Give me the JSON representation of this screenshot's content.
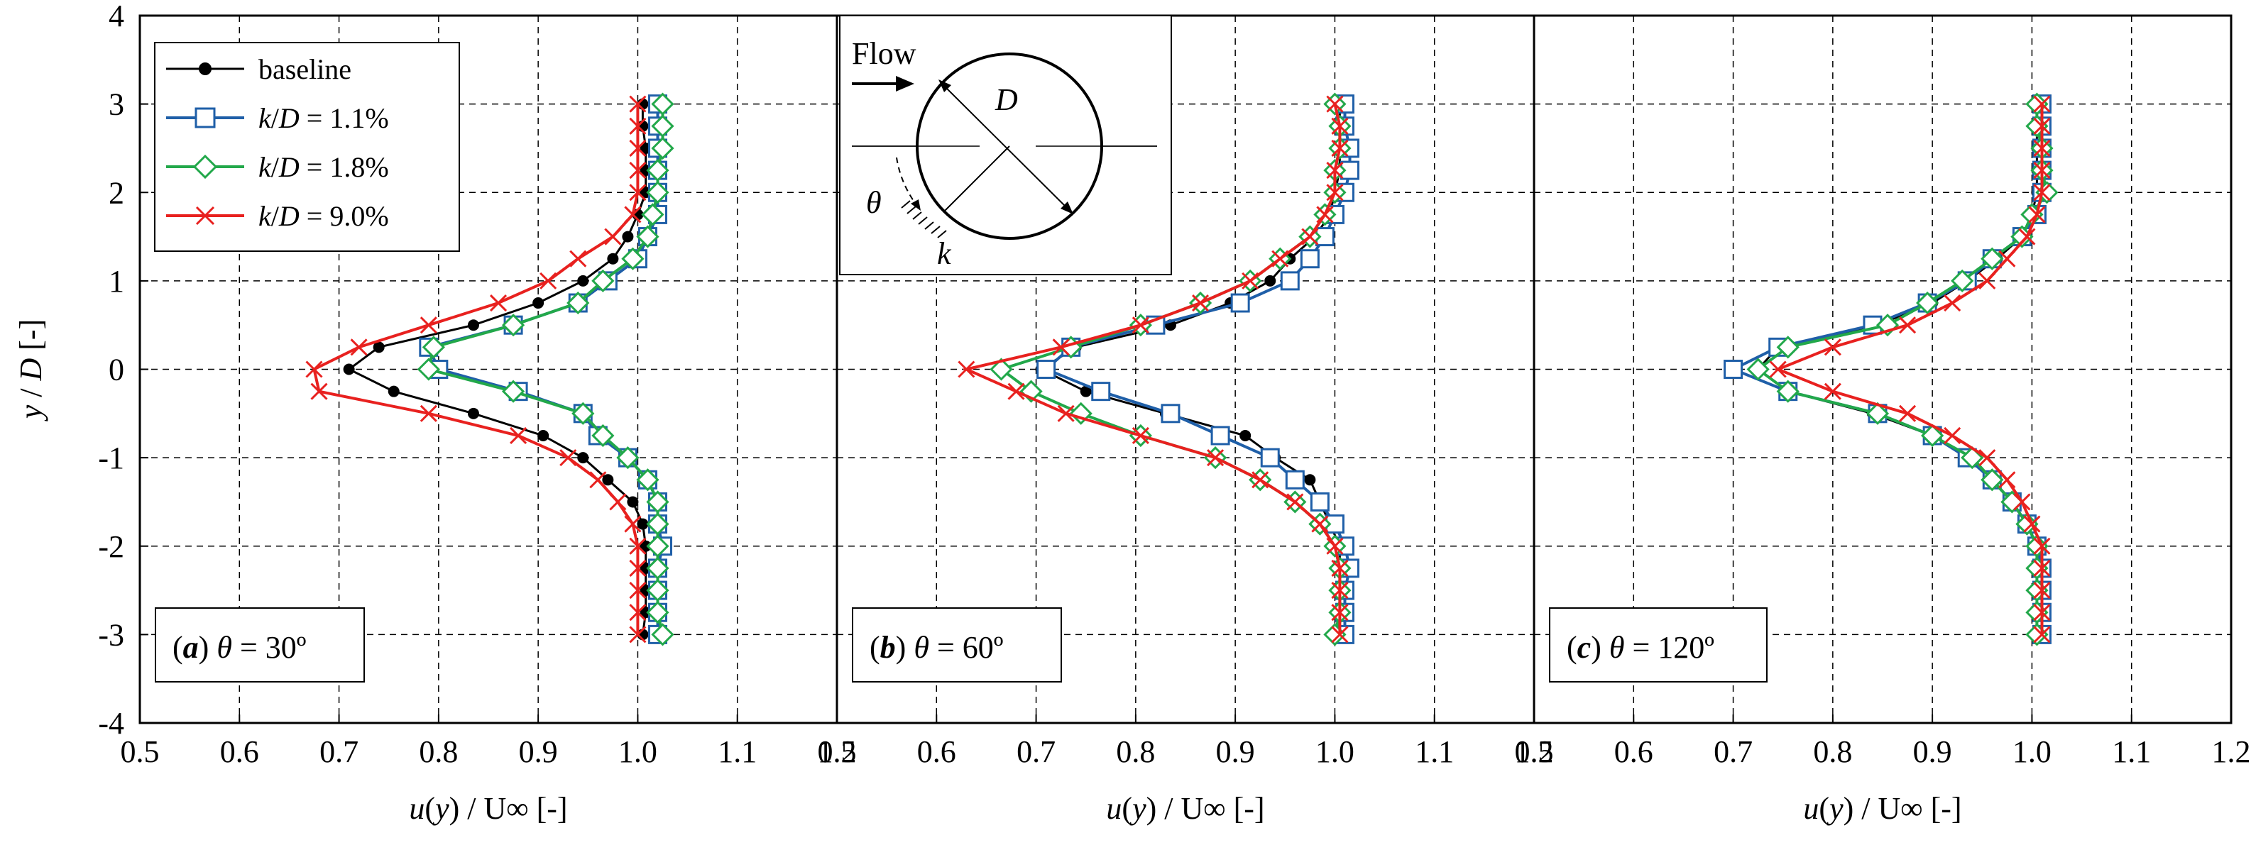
{
  "chart_data": [
    {
      "type": "line",
      "panel_id": "a",
      "annotation": {
        "prefix": "(",
        "letter": "a",
        "suffix": ")",
        "theta": "θ",
        "value": " = 30º"
      },
      "x_tick_labels": [
        "0.5",
        "0.6",
        "0.7",
        "0.8",
        "0.9",
        "1.0",
        "1.1",
        "1.2"
      ],
      "y_tick_labels": [
        "-4",
        "-3",
        "-2",
        "-1",
        "0",
        "1",
        "2",
        "3",
        "4"
      ],
      "xlim": [
        0.5,
        1.2
      ],
      "ylim": [
        -4,
        4
      ],
      "xlabel": {
        "u": "u",
        "mid": "(",
        "y": "y",
        "rest": ") / U∞ [-]"
      },
      "series": [
        {
          "name": "baseline",
          "y": [
            3,
            2.75,
            2.5,
            2.25,
            2,
            1.75,
            1.5,
            1.25,
            1,
            0.75,
            0.5,
            0.25,
            0,
            -0.25,
            -0.5,
            -0.75,
            -1,
            -1.25,
            -1.5,
            -1.75,
            -2,
            -2.25,
            -2.5,
            -2.75,
            -3
          ],
          "values": [
            1.005,
            1.005,
            1.008,
            1.008,
            1.008,
            1.0,
            0.99,
            0.975,
            0.945,
            0.9,
            0.835,
            0.74,
            0.71,
            0.755,
            0.835,
            0.905,
            0.945,
            0.97,
            0.995,
            1.005,
            1.008,
            1.008,
            1.008,
            1.008,
            1.005
          ]
        },
        {
          "name": "k/D = 1.1%",
          "y": [
            3,
            2.75,
            2.5,
            2.25,
            2,
            1.75,
            1.5,
            1.25,
            1,
            0.75,
            0.5,
            0.25,
            0,
            -0.25,
            -0.5,
            -0.75,
            -1,
            -1.25,
            -1.5,
            -1.75,
            -2,
            -2.25,
            -2.5,
            -2.75,
            -3
          ],
          "values": [
            1.02,
            1.02,
            1.02,
            1.02,
            1.02,
            1.02,
            1.01,
            1.0,
            0.97,
            0.94,
            0.875,
            0.79,
            0.8,
            0.88,
            0.945,
            0.96,
            0.99,
            1.01,
            1.02,
            1.02,
            1.025,
            1.02,
            1.02,
            1.02,
            1.02
          ]
        },
        {
          "name": "k/D = 1.8%",
          "y": [
            3,
            2.75,
            2.5,
            2.25,
            2,
            1.75,
            1.5,
            1.25,
            1,
            0.75,
            0.5,
            0.25,
            0,
            -0.25,
            -0.5,
            -0.75,
            -1,
            -1.25,
            -1.5,
            -1.75,
            -2,
            -2.25,
            -2.5,
            -2.75,
            -3
          ],
          "values": [
            1.025,
            1.025,
            1.025,
            1.02,
            1.02,
            1.015,
            1.01,
            0.995,
            0.965,
            0.94,
            0.875,
            0.795,
            0.79,
            0.875,
            0.945,
            0.965,
            0.99,
            1.01,
            1.02,
            1.02,
            1.02,
            1.02,
            1.02,
            1.02,
            1.025
          ]
        },
        {
          "name": "k/D = 9.0%",
          "y": [
            3,
            2.75,
            2.5,
            2.25,
            2,
            1.75,
            1.5,
            1.25,
            1,
            0.75,
            0.5,
            0.25,
            0,
            -0.25,
            -0.5,
            -0.75,
            -1,
            -1.25,
            -1.5,
            -1.75,
            -2,
            -2.25,
            -2.5,
            -2.75,
            -3
          ],
          "values": [
            1.0,
            1.0,
            1.0,
            1.0,
            1.0,
            0.995,
            0.975,
            0.94,
            0.91,
            0.86,
            0.79,
            0.72,
            0.675,
            0.68,
            0.79,
            0.88,
            0.93,
            0.96,
            0.98,
            0.995,
            1.0,
            1.0,
            1.0,
            1.0,
            1.0
          ]
        }
      ]
    },
    {
      "type": "line",
      "panel_id": "b",
      "annotation": {
        "prefix": "(",
        "letter": "b",
        "suffix": ")",
        "theta": "θ",
        "value": " = 60º"
      },
      "x_tick_labels": [
        "0.5",
        "0.6",
        "0.7",
        "0.8",
        "0.9",
        "1.0",
        "1.1",
        "1.2"
      ],
      "xlim": [
        0.5,
        1.2
      ],
      "ylim": [
        -4,
        4
      ],
      "xlabel": {
        "u": "u",
        "mid": "(",
        "y": "y",
        "rest": ") / U∞ [-]"
      },
      "series": [
        {
          "name": "baseline",
          "y": [
            3,
            2.75,
            2.5,
            2.25,
            2,
            1.75,
            1.5,
            1.25,
            1,
            0.75,
            0.5,
            0.25,
            0,
            -0.25,
            -0.5,
            -0.75,
            -1,
            -1.25,
            -1.5,
            -1.75,
            -2,
            -2.25,
            -2.5,
            -2.75,
            -3
          ],
          "values": [
            1.005,
            1.005,
            1.005,
            1.005,
            1.0,
            0.995,
            0.98,
            0.955,
            0.935,
            0.895,
            0.835,
            0.74,
            0.705,
            0.75,
            0.83,
            0.91,
            0.94,
            0.975,
            0.985,
            0.995,
            1.005,
            1.005,
            1.005,
            1.005,
            1.0
          ]
        },
        {
          "name": "k/D = 1.1%",
          "y": [
            3,
            2.75,
            2.5,
            2.25,
            2,
            1.75,
            1.5,
            1.25,
            1,
            0.75,
            0.5,
            0.25,
            0,
            -0.25,
            -0.5,
            -0.75,
            -1,
            -1.25,
            -1.5,
            -1.75,
            -2,
            -2.25,
            -2.5,
            -2.75,
            -3
          ],
          "values": [
            1.01,
            1.01,
            1.015,
            1.015,
            1.01,
            1.0,
            0.99,
            0.975,
            0.955,
            0.905,
            0.82,
            0.735,
            0.71,
            0.765,
            0.835,
            0.885,
            0.935,
            0.96,
            0.985,
            1.0,
            1.01,
            1.015,
            1.01,
            1.01,
            1.01
          ]
        },
        {
          "name": "k/D = 1.8%",
          "y": [
            3,
            2.75,
            2.5,
            2.25,
            2,
            1.75,
            1.5,
            1.25,
            1,
            0.75,
            0.5,
            0.25,
            0,
            -0.25,
            -0.5,
            -0.75,
            -1,
            -1.25,
            -1.5,
            -1.75,
            -2,
            -2.25,
            -2.5,
            -2.75,
            -3
          ],
          "values": [
            1.0,
            1.005,
            1.005,
            1.0,
            1.0,
            0.99,
            0.975,
            0.945,
            0.915,
            0.865,
            0.805,
            0.735,
            0.665,
            0.695,
            0.745,
            0.805,
            0.88,
            0.925,
            0.96,
            0.985,
            1.0,
            1.005,
            1.005,
            1.005,
            1.0
          ]
        },
        {
          "name": "k/D = 9.0%",
          "y": [
            3,
            2.75,
            2.5,
            2.25,
            2,
            1.75,
            1.5,
            1.25,
            1,
            0.75,
            0.5,
            0.25,
            0,
            -0.25,
            -0.5,
            -0.75,
            -1,
            -1.25,
            -1.5,
            -1.75,
            -2,
            -2.25,
            -2.5,
            -2.75,
            -3
          ],
          "values": [
            1.0,
            1.005,
            1.005,
            1.0,
            1.0,
            0.99,
            0.975,
            0.945,
            0.915,
            0.865,
            0.805,
            0.725,
            0.63,
            0.68,
            0.73,
            0.805,
            0.88,
            0.925,
            0.96,
            0.985,
            1.0,
            1.005,
            1.005,
            1.005,
            1.005
          ]
        }
      ]
    },
    {
      "type": "line",
      "panel_id": "c",
      "annotation": {
        "prefix": "(",
        "letter": "c",
        "suffix": ")",
        "theta": "θ",
        "value": " = 120º"
      },
      "x_tick_labels": [
        "0.5",
        "0.6",
        "0.7",
        "0.8",
        "0.9",
        "1.0",
        "1.1",
        "1.2"
      ],
      "xlim": [
        0.5,
        1.2
      ],
      "ylim": [
        -4,
        4
      ],
      "xlabel": {
        "u": "u",
        "mid": "(",
        "y": "y",
        "rest": ") / U∞ [-]"
      },
      "series": [
        {
          "name": "baseline",
          "y": [
            3,
            2.75,
            2.5,
            2.25,
            2,
            1.75,
            1.5,
            1.25,
            1,
            0.75,
            0.5,
            0.25,
            0,
            -0.25,
            -0.5,
            -0.75,
            -1,
            -1.25,
            -1.5,
            -1.75,
            -2,
            -2.25,
            -2.5,
            -2.75,
            -3
          ],
          "values": [
            1.005,
            1.005,
            1.005,
            1.005,
            1.005,
            1.0,
            0.99,
            0.965,
            0.935,
            0.9,
            0.845,
            0.745,
            0.725,
            0.755,
            0.84,
            0.9,
            0.935,
            0.96,
            0.98,
            0.995,
            1.005,
            1.005,
            1.005,
            1.005,
            1.005
          ]
        },
        {
          "name": "k/D = 1.1%",
          "y": [
            3,
            2.75,
            2.5,
            2.25,
            2,
            1.75,
            1.5,
            1.25,
            1,
            0.75,
            0.5,
            0.25,
            0,
            -0.25,
            -0.5,
            -0.75,
            -1,
            -1.25,
            -1.5,
            -1.75,
            -2,
            -2.25,
            -2.5,
            -2.75,
            -3
          ],
          "values": [
            1.01,
            1.01,
            1.01,
            1.01,
            1.01,
            1.005,
            0.99,
            0.96,
            0.935,
            0.895,
            0.84,
            0.745,
            0.7,
            0.755,
            0.845,
            0.9,
            0.935,
            0.96,
            0.98,
            0.995,
            1.005,
            1.01,
            1.01,
            1.01,
            1.01
          ]
        },
        {
          "name": "k/D = 1.8%",
          "y": [
            3,
            2.75,
            2.5,
            2.25,
            2,
            1.75,
            1.5,
            1.25,
            1,
            0.75,
            0.5,
            0.25,
            0,
            -0.25,
            -0.5,
            -0.75,
            -1,
            -1.25,
            -1.5,
            -1.75,
            -2,
            -2.25,
            -2.5,
            -2.75,
            -3
          ],
          "values": [
            1.005,
            1.005,
            1.01,
            1.01,
            1.015,
            1.0,
            0.99,
            0.96,
            0.93,
            0.895,
            0.855,
            0.755,
            0.725,
            0.755,
            0.845,
            0.9,
            0.94,
            0.96,
            0.98,
            0.995,
            1.005,
            1.005,
            1.005,
            1.005,
            1.005
          ]
        },
        {
          "name": "k/D = 9.0%",
          "y": [
            3,
            2.75,
            2.5,
            2.25,
            2,
            1.75,
            1.5,
            1.25,
            1,
            0.75,
            0.5,
            0.25,
            0,
            -0.25,
            -0.5,
            -0.75,
            -1,
            -1.25,
            -1.5,
            -1.75,
            -2,
            -2.25,
            -2.5,
            -2.75,
            -3
          ],
          "values": [
            1.01,
            1.01,
            1.01,
            1.01,
            1.01,
            1.005,
            0.995,
            0.975,
            0.955,
            0.92,
            0.875,
            0.8,
            0.745,
            0.8,
            0.875,
            0.92,
            0.955,
            0.975,
            0.99,
            1.0,
            1.01,
            1.01,
            1.01,
            1.01,
            1.01
          ]
        }
      ]
    }
  ],
  "ylabel": {
    "y": "y",
    "sep": " / ",
    "D": "D",
    "unit": " [-]"
  },
  "legend": {
    "position": "top-left",
    "items": [
      {
        "label": "baseline"
      },
      {
        "label": "k/D = 1.1%",
        "italic": "k",
        "slash": "/",
        "italic2": "D",
        "rest": " = 1.1%"
      },
      {
        "label": "k/D = 1.8%",
        "italic": "k",
        "slash": "/",
        "italic2": "D",
        "rest": " = 1.8%"
      },
      {
        "label": "k/D = 9.0%",
        "italic": "k",
        "slash": "/",
        "italic2": "D",
        "rest": " = 9.0%"
      }
    ]
  },
  "inset": {
    "flow_label": "Flow",
    "diameter_label": "D",
    "angle_label": "θ",
    "roughness_label": "k"
  },
  "colors": {
    "baseline": "#000000",
    "kd11": "#1f5fa8",
    "kd18": "#22a84a",
    "kd90": "#e8211f"
  }
}
